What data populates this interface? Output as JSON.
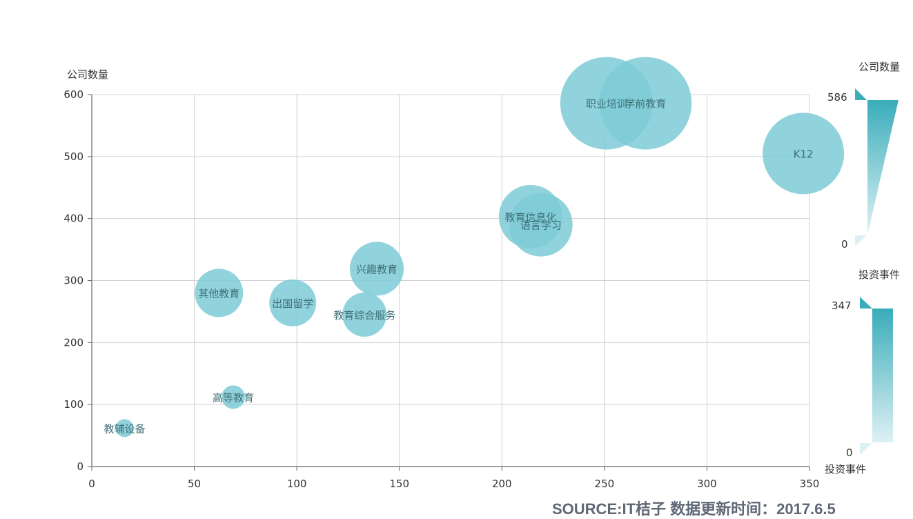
{
  "chart_data": {
    "type": "scatter",
    "subtype": "bubble",
    "xlim": [
      0,
      350
    ],
    "ylim": [
      0,
      600
    ],
    "x_ticks": [
      0,
      50,
      100,
      150,
      200,
      250,
      300,
      350
    ],
    "y_ticks": [
      0,
      100,
      200,
      300,
      400,
      500,
      600
    ],
    "ylabel": "公司数量",
    "grid": true,
    "bubble_color": "#7ecbd6",
    "points": [
      {
        "label": "教辅设备",
        "x": 16,
        "y": 62,
        "r": 13
      },
      {
        "label": "高等教育",
        "x": 69,
        "y": 112,
        "r": 17
      },
      {
        "label": "其他教育",
        "x": 62,
        "y": 280,
        "r": 35
      },
      {
        "label": "出国留学",
        "x": 98,
        "y": 264,
        "r": 34
      },
      {
        "label": "教育综合服务",
        "x": 133,
        "y": 245,
        "r": 32
      },
      {
        "label": "兴趣教育",
        "x": 139,
        "y": 319,
        "r": 39
      },
      {
        "label": "语言学习",
        "x": 219,
        "y": 390,
        "r": 46
      },
      {
        "label": "教育信息化",
        "x": 214,
        "y": 403,
        "r": 46
      },
      {
        "label": "K12",
        "x": 347,
        "y": 505,
        "r": 59
      },
      {
        "label": "学前教育",
        "x": 270,
        "y": 586,
        "r": 67
      },
      {
        "label": "职业培训",
        "x": 251,
        "y": 586,
        "r": 67
      }
    ],
    "visual_maps": [
      {
        "title": "公司数量",
        "max_label": "586",
        "min_label": "0",
        "color_high": "#3aacba",
        "color_low": "#ddf1f4"
      },
      {
        "title": "投资事件",
        "max_label": "347",
        "min_label": "0",
        "bottom_label": "投资事件",
        "color_high": "#3aacba",
        "color_low": "#ddf1f4"
      }
    ]
  },
  "footer": {
    "source_text": "SOURCE:IT桔子 数据更新时间：2017.6.5"
  }
}
